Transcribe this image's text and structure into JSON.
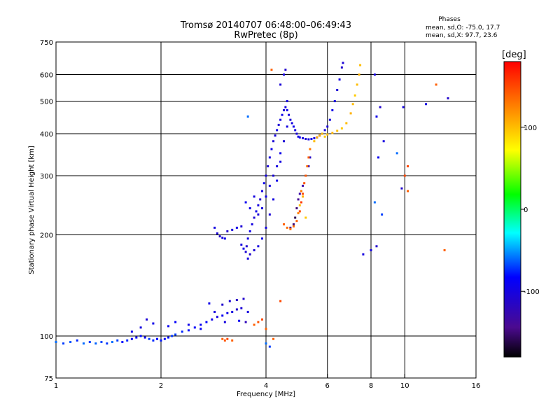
{
  "chart_data": {
    "type": "scatter",
    "title": "Tromsø 20140707 06:48:00–06:49:43",
    "subtitle": "RwPretec (8p)",
    "xlabel": "Frequency [MHz]",
    "ylabel": "Stationary phase Virtual Height [km]",
    "x_scale": "log",
    "y_scale": "log",
    "xlim": [
      1,
      16
    ],
    "ylim": [
      75,
      750
    ],
    "x_ticks": [
      1,
      2,
      4,
      6,
      8,
      10,
      16
    ],
    "y_ticks": [
      75,
      100,
      200,
      300,
      400,
      500,
      600,
      750
    ],
    "x_grid": [
      2,
      4,
      6,
      8,
      10
    ],
    "y_grid": [
      100,
      200,
      300,
      400,
      500,
      600
    ],
    "grid": true,
    "phase_stats": {
      "title": "Phases",
      "line_o": "mean, sd,O: -75.0, 17.7",
      "line_x": "mean, sd,X:  97.7, 23.6"
    },
    "colorbar": {
      "label": "[deg]",
      "min": -180,
      "max": 180,
      "ticks": [
        100,
        0,
        -100
      ]
    },
    "series": [
      {
        "points": [
          [
            1.0,
            96,
            -60
          ],
          [
            1.05,
            95,
            -70
          ],
          [
            1.1,
            96,
            -65
          ],
          [
            1.15,
            97,
            -75
          ],
          [
            1.2,
            95,
            -60
          ],
          [
            1.25,
            96,
            -70
          ],
          [
            1.3,
            95,
            -62
          ],
          [
            1.35,
            96,
            -68
          ],
          [
            1.4,
            95,
            -72
          ],
          [
            1.45,
            96,
            -60
          ],
          [
            1.5,
            97,
            -70
          ],
          [
            1.55,
            96,
            -80
          ],
          [
            1.6,
            97,
            -75
          ],
          [
            1.65,
            98,
            -90
          ],
          [
            1.7,
            99,
            -85
          ],
          [
            1.75,
            100,
            -80
          ],
          [
            1.8,
            99,
            -88
          ],
          [
            1.85,
            98,
            -70
          ],
          [
            1.9,
            97,
            -75
          ],
          [
            1.95,
            98,
            -82
          ],
          [
            2.0,
            97,
            -78
          ],
          [
            2.05,
            98,
            -85
          ],
          [
            2.1,
            99,
            -80
          ],
          [
            2.15,
            100,
            -72
          ],
          [
            2.2,
            101,
            -70
          ],
          [
            2.3,
            103,
            -75
          ],
          [
            2.4,
            104,
            -80
          ],
          [
            2.5,
            106,
            -85
          ],
          [
            2.6,
            108,
            -90
          ],
          [
            2.7,
            110,
            -85
          ],
          [
            2.8,
            112,
            -95
          ],
          [
            2.9,
            114,
            -100
          ],
          [
            3.0,
            115,
            -90
          ],
          [
            3.1,
            117,
            -95
          ],
          [
            3.2,
            118,
            -100
          ],
          [
            3.3,
            120,
            -110
          ],
          [
            3.4,
            121,
            -105
          ],
          [
            1.65,
            103,
            -95
          ],
          [
            1.75,
            106,
            -100
          ],
          [
            1.82,
            112,
            -105
          ],
          [
            1.9,
            109,
            -95
          ],
          [
            2.1,
            107,
            -90
          ],
          [
            2.2,
            110,
            -85
          ],
          [
            2.4,
            108,
            -95
          ],
          [
            2.6,
            105,
            -88
          ],
          [
            2.85,
            118,
            -100
          ],
          [
            3.0,
            124,
            -110
          ],
          [
            3.15,
            127,
            -105
          ],
          [
            3.3,
            128,
            -115
          ],
          [
            3.45,
            129,
            -110
          ],
          [
            2.75,
            125,
            -95
          ],
          [
            3.05,
            110,
            -100
          ],
          [
            3.35,
            111,
            -90
          ],
          [
            3.5,
            110,
            -120
          ],
          [
            3.55,
            118,
            -100
          ],
          [
            2.85,
            210,
            -100
          ],
          [
            2.9,
            202,
            -105
          ],
          [
            2.95,
            198,
            -110
          ],
          [
            3.0,
            196,
            -100
          ],
          [
            3.05,
            195,
            -95
          ],
          [
            3.1,
            205,
            -110
          ],
          [
            3.2,
            207,
            -100
          ],
          [
            3.3,
            210,
            -95
          ],
          [
            3.4,
            212,
            -105
          ],
          [
            3.4,
            187,
            -100
          ],
          [
            3.45,
            182,
            -95
          ],
          [
            3.5,
            178,
            -105
          ],
          [
            3.52,
            185,
            -110
          ],
          [
            3.55,
            195,
            -100
          ],
          [
            3.6,
            205,
            -95
          ],
          [
            3.65,
            215,
            -100
          ],
          [
            3.7,
            225,
            -105
          ],
          [
            3.75,
            235,
            -95
          ],
          [
            3.8,
            245,
            -100
          ],
          [
            3.85,
            255,
            -110
          ],
          [
            3.9,
            270,
            -100
          ],
          [
            3.95,
            285,
            -95
          ],
          [
            4.0,
            300,
            -100
          ],
          [
            4.05,
            320,
            -105
          ],
          [
            4.1,
            340,
            -100
          ],
          [
            4.15,
            360,
            -95
          ],
          [
            4.2,
            380,
            -105
          ],
          [
            4.25,
            395,
            -100
          ],
          [
            4.3,
            410,
            -95
          ],
          [
            4.35,
            425,
            -105
          ],
          [
            4.4,
            440,
            -100
          ],
          [
            4.45,
            455,
            -95
          ],
          [
            4.5,
            470,
            -105
          ],
          [
            4.55,
            480,
            -100
          ],
          [
            4.6,
            470,
            -95
          ],
          [
            4.65,
            455,
            -100
          ],
          [
            4.7,
            440,
            -105
          ],
          [
            4.75,
            430,
            -100
          ],
          [
            4.8,
            420,
            -95
          ],
          [
            4.85,
            410,
            -100
          ],
          [
            4.9,
            400,
            -105
          ],
          [
            4.95,
            392,
            -100
          ],
          [
            5.0,
            390,
            -95
          ],
          [
            5.1,
            388,
            -100
          ],
          [
            5.2,
            386,
            -105
          ],
          [
            5.3,
            385,
            -100
          ],
          [
            5.4,
            386,
            -95
          ],
          [
            5.5,
            388,
            -100
          ],
          [
            5.6,
            390,
            -105
          ],
          [
            5.7,
            395,
            -100
          ],
          [
            5.8,
            400,
            -95
          ],
          [
            5.9,
            410,
            -100
          ],
          [
            6.0,
            420,
            -105
          ],
          [
            6.1,
            440,
            -100
          ],
          [
            6.2,
            470,
            -95
          ],
          [
            6.3,
            500,
            -100
          ],
          [
            6.4,
            540,
            -105
          ],
          [
            6.5,
            580,
            -100
          ],
          [
            6.6,
            630,
            -110
          ],
          [
            6.65,
            650,
            -105
          ],
          [
            3.55,
            170,
            -100
          ],
          [
            3.6,
            175,
            -110
          ],
          [
            3.7,
            180,
            -105
          ],
          [
            3.8,
            185,
            -100
          ],
          [
            3.9,
            195,
            -95
          ],
          [
            4.0,
            210,
            -100
          ],
          [
            4.1,
            230,
            -105
          ],
          [
            4.2,
            255,
            -100
          ],
          [
            4.3,
            290,
            -95
          ],
          [
            4.4,
            330,
            -100
          ],
          [
            4.5,
            380,
            -105
          ],
          [
            4.6,
            420,
            -100
          ],
          [
            3.5,
            250,
            -90
          ],
          [
            3.6,
            240,
            -95
          ],
          [
            3.7,
            260,
            -100
          ],
          [
            3.8,
            230,
            -105
          ],
          [
            3.9,
            240,
            -100
          ],
          [
            4.0,
            260,
            -95
          ],
          [
            4.1,
            280,
            -100
          ],
          [
            4.2,
            300,
            -105
          ],
          [
            4.3,
            320,
            -100
          ],
          [
            4.4,
            350,
            -95
          ],
          [
            4.5,
            600,
            -100
          ],
          [
            4.55,
            620,
            -110
          ],
          [
            4.4,
            560,
            -105
          ],
          [
            4.6,
            500,
            -100
          ],
          [
            4.7,
            210,
            -140
          ],
          [
            4.8,
            215,
            -150
          ],
          [
            4.85,
            225,
            -160
          ],
          [
            4.9,
            240,
            -150
          ],
          [
            4.95,
            255,
            -140
          ],
          [
            5.0,
            265,
            -130
          ],
          [
            5.1,
            280,
            -130
          ],
          [
            5.2,
            300,
            -125
          ],
          [
            5.3,
            320,
            -120
          ],
          [
            5.35,
            340,
            -115
          ],
          [
            4.5,
            215,
            140
          ],
          [
            4.6,
            210,
            135
          ],
          [
            4.7,
            208,
            130
          ],
          [
            4.8,
            212,
            135
          ],
          [
            4.9,
            220,
            140
          ],
          [
            5.0,
            235,
            150
          ],
          [
            5.05,
            250,
            155
          ],
          [
            5.1,
            265,
            150
          ],
          [
            5.15,
            285,
            145
          ],
          [
            5.2,
            300,
            140
          ],
          [
            5.25,
            320,
            135
          ],
          [
            5.3,
            340,
            140
          ],
          [
            5.35,
            360,
            130
          ],
          [
            5.0,
            245,
            100
          ],
          [
            5.1,
            260,
            105
          ],
          [
            5.2,
            225,
            95
          ],
          [
            4.95,
            232,
            125
          ],
          [
            5.05,
            270,
            130
          ],
          [
            5.5,
            380,
            100
          ],
          [
            5.6,
            390,
            110
          ],
          [
            5.7,
            395,
            105
          ],
          [
            5.8,
            400,
            100
          ],
          [
            5.9,
            392,
            95
          ],
          [
            6.0,
            398,
            100
          ],
          [
            6.2,
            402,
            105
          ],
          [
            6.4,
            408,
            100
          ],
          [
            6.6,
            415,
            95
          ],
          [
            6.8,
            430,
            100
          ],
          [
            7.0,
            460,
            105
          ],
          [
            7.1,
            490,
            100
          ],
          [
            7.2,
            520,
            95
          ],
          [
            7.3,
            560,
            100
          ],
          [
            7.4,
            600,
            105
          ],
          [
            7.45,
            640,
            100
          ],
          [
            3.0,
            98,
            140
          ],
          [
            3.05,
            97,
            145
          ],
          [
            3.1,
            98,
            150
          ],
          [
            3.2,
            97,
            140
          ],
          [
            3.7,
            108,
            140
          ],
          [
            3.8,
            110,
            145
          ],
          [
            3.9,
            112,
            150
          ],
          [
            4.0,
            105,
            140
          ],
          [
            8.2,
            600,
            -100
          ],
          [
            8.5,
            480,
            -110
          ],
          [
            8.3,
            450,
            -95
          ],
          [
            8.7,
            380,
            -100
          ],
          [
            8.4,
            340,
            -90
          ],
          [
            8.2,
            250,
            -60
          ],
          [
            8.6,
            230,
            -70
          ],
          [
            8.0,
            180,
            -100
          ],
          [
            8.3,
            185,
            -110
          ],
          [
            7.6,
            175,
            -100
          ],
          [
            9.9,
            480,
            -100
          ],
          [
            9.8,
            275,
            -110
          ],
          [
            10.0,
            300,
            150
          ],
          [
            10.2,
            270,
            140
          ],
          [
            11.5,
            490,
            -100
          ],
          [
            12.3,
            560,
            140
          ],
          [
            13.3,
            510,
            -110
          ],
          [
            13.0,
            180,
            140
          ],
          [
            9.5,
            350,
            -60
          ],
          [
            10.2,
            320,
            150
          ],
          [
            4.15,
            620,
            140
          ],
          [
            3.55,
            450,
            -60
          ],
          [
            4.0,
            95,
            -60
          ],
          [
            4.1,
            93,
            -70
          ],
          [
            4.4,
            127,
            150
          ],
          [
            4.2,
            98,
            140
          ]
        ]
      }
    ]
  }
}
